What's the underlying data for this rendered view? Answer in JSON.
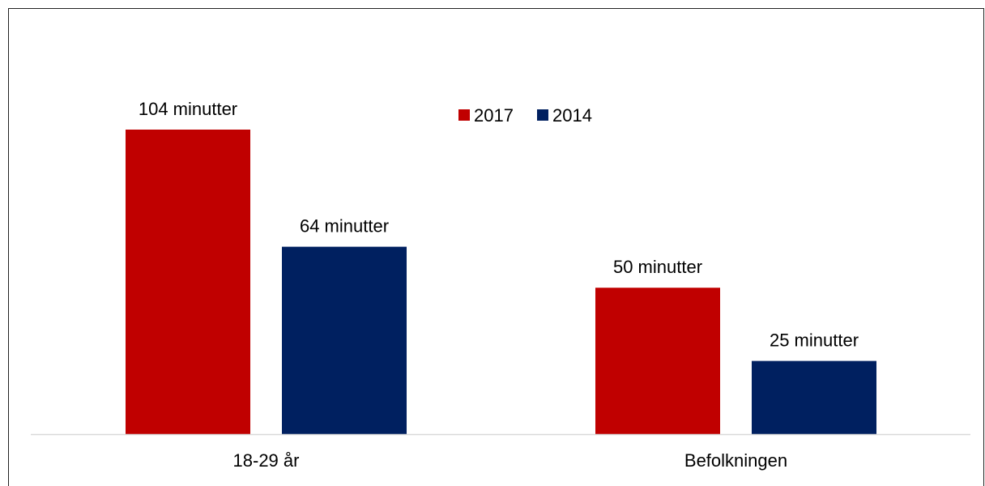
{
  "chart_data": {
    "type": "bar",
    "categories": [
      "18-29 år",
      "Befolkningen"
    ],
    "series": [
      {
        "name": "2017",
        "values": [
          104,
          50
        ],
        "color": "#C00000",
        "labels": [
          "104 minutter",
          "50 minutter"
        ]
      },
      {
        "name": "2014",
        "values": [
          64,
          25
        ],
        "color": "#002060",
        "labels": [
          "64 minutter",
          "25 minutter"
        ]
      }
    ],
    "ylim": [
      0,
      104
    ],
    "grid": false,
    "legend": "top-center",
    "axis_color": "#D9D9D9"
  }
}
